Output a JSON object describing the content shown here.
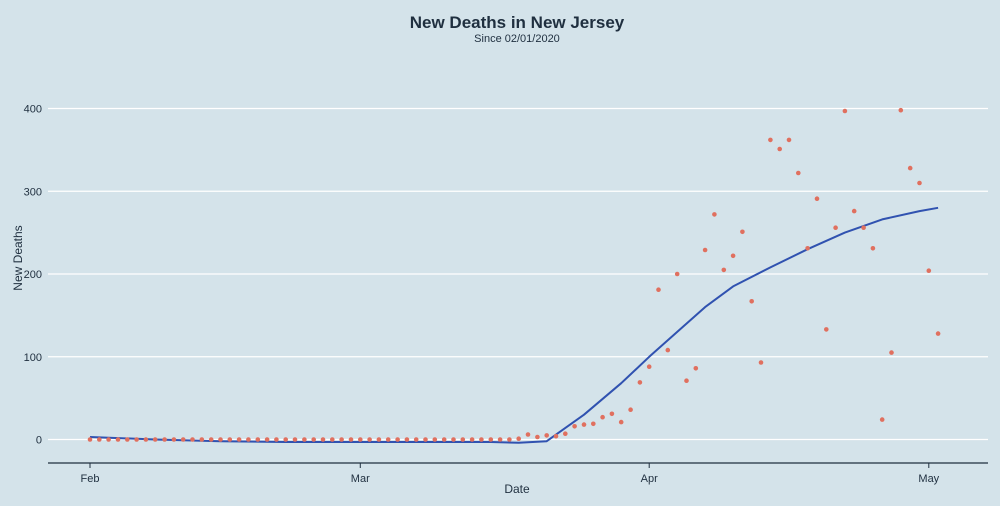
{
  "chart_data": {
    "type": "scatter",
    "title": "New Deaths in New Jersey",
    "subtitle": "Since 02/01/2020",
    "xlabel": "Date",
    "ylabel": "New Deaths",
    "x_start": "2020-02-01",
    "x_end": "2020-05-03",
    "x_ticks": [
      {
        "date": "2020-02-01",
        "label": "Feb"
      },
      {
        "date": "2020-03-01",
        "label": "Mar"
      },
      {
        "date": "2020-04-01",
        "label": "Apr"
      },
      {
        "date": "2020-05-01",
        "label": "May"
      }
    ],
    "ylim": [
      -30,
      460
    ],
    "y_ticks": [
      0,
      100,
      200,
      300,
      400
    ],
    "grid": "horizontal",
    "colors": {
      "points": "#e0705f",
      "trend": "#3052b0",
      "grid": "#ffffff",
      "axis": "#1f2f3f",
      "background": "#d4e3ea"
    },
    "series": [
      {
        "kind": "points",
        "dates": [
          "2020-02-01",
          "2020-02-02",
          "2020-02-03",
          "2020-02-04",
          "2020-02-05",
          "2020-02-06",
          "2020-02-07",
          "2020-02-08",
          "2020-02-09",
          "2020-02-10",
          "2020-02-11",
          "2020-02-12",
          "2020-02-13",
          "2020-02-14",
          "2020-02-15",
          "2020-02-16",
          "2020-02-17",
          "2020-02-18",
          "2020-02-19",
          "2020-02-20",
          "2020-02-21",
          "2020-02-22",
          "2020-02-23",
          "2020-02-24",
          "2020-02-25",
          "2020-02-26",
          "2020-02-27",
          "2020-02-28",
          "2020-02-29",
          "2020-03-01",
          "2020-03-02",
          "2020-03-03",
          "2020-03-04",
          "2020-03-05",
          "2020-03-06",
          "2020-03-07",
          "2020-03-08",
          "2020-03-09",
          "2020-03-10",
          "2020-03-11",
          "2020-03-12",
          "2020-03-13",
          "2020-03-14",
          "2020-03-15",
          "2020-03-16",
          "2020-03-17",
          "2020-03-18",
          "2020-03-19",
          "2020-03-20",
          "2020-03-21",
          "2020-03-22",
          "2020-03-23",
          "2020-03-24",
          "2020-03-25",
          "2020-03-26",
          "2020-03-27",
          "2020-03-28",
          "2020-03-29",
          "2020-03-30",
          "2020-03-31",
          "2020-04-01",
          "2020-04-02",
          "2020-04-03",
          "2020-04-04",
          "2020-04-05",
          "2020-04-06",
          "2020-04-07",
          "2020-04-08",
          "2020-04-09",
          "2020-04-10",
          "2020-04-11",
          "2020-04-12",
          "2020-04-13",
          "2020-04-14",
          "2020-04-15",
          "2020-04-16",
          "2020-04-17",
          "2020-04-18",
          "2020-04-19",
          "2020-04-20",
          "2020-04-21",
          "2020-04-22",
          "2020-04-23",
          "2020-04-24",
          "2020-04-25",
          "2020-04-26",
          "2020-04-27",
          "2020-04-28",
          "2020-04-29",
          "2020-04-30",
          "2020-05-01",
          "2020-05-02"
        ],
        "values": [
          0,
          0,
          0,
          0,
          0,
          0,
          0,
          0,
          0,
          0,
          0,
          0,
          0,
          0,
          0,
          0,
          0,
          0,
          0,
          0,
          0,
          0,
          0,
          0,
          0,
          0,
          0,
          0,
          0,
          0,
          0,
          0,
          0,
          0,
          0,
          0,
          0,
          0,
          0,
          0,
          0,
          0,
          0,
          0,
          0,
          0,
          1,
          6,
          3,
          5,
          4,
          7,
          16,
          18,
          19,
          27,
          31,
          21,
          36,
          69,
          88,
          181,
          108,
          200,
          71,
          86,
          229,
          272,
          205,
          222,
          251,
          167,
          93,
          362,
          351,
          362,
          322,
          231,
          291,
          133,
          256,
          397,
          276,
          256,
          231,
          24,
          105,
          398,
          328,
          310,
          204,
          128
        ]
      },
      {
        "kind": "trend",
        "dates": [
          "2020-02-01",
          "2020-02-08",
          "2020-02-15",
          "2020-02-22",
          "2020-03-01",
          "2020-03-08",
          "2020-03-15",
          "2020-03-18",
          "2020-03-21",
          "2020-03-25",
          "2020-03-29",
          "2020-04-01",
          "2020-04-04",
          "2020-04-07",
          "2020-04-10",
          "2020-04-14",
          "2020-04-18",
          "2020-04-22",
          "2020-04-26",
          "2020-04-30",
          "2020-05-02"
        ],
        "values": [
          3,
          0,
          -2,
          -3,
          -3,
          -3,
          -3,
          -4,
          -2,
          30,
          68,
          100,
          130,
          160,
          185,
          208,
          230,
          250,
          266,
          276,
          280
        ]
      }
    ]
  }
}
